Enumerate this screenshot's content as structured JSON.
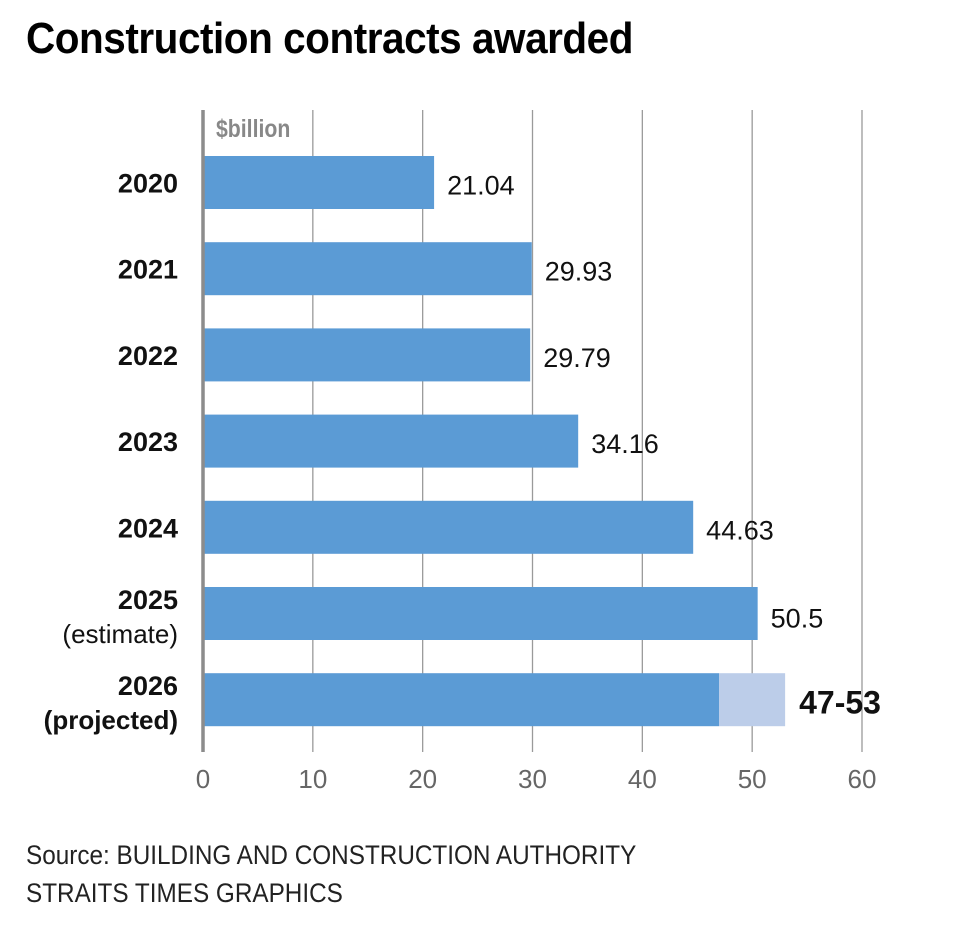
{
  "chart_data": {
    "type": "bar",
    "orientation": "horizontal",
    "title": "Construction contracts awarded",
    "unit_label": "$billion",
    "xlabel": "",
    "ylabel": "",
    "xlim": [
      0,
      60
    ],
    "xticks": [
      0,
      10,
      20,
      30,
      40,
      50,
      60
    ],
    "grid": true,
    "categories": [
      {
        "label": "2020",
        "sublabel": ""
      },
      {
        "label": "2021",
        "sublabel": ""
      },
      {
        "label": "2022",
        "sublabel": ""
      },
      {
        "label": "2023",
        "sublabel": ""
      },
      {
        "label": "2024",
        "sublabel": ""
      },
      {
        "label": "2025",
        "sublabel": "(estimate)"
      },
      {
        "label": "2026",
        "sublabel": "(projected)",
        "bold_sublabel": true
      }
    ],
    "values": [
      21.04,
      29.93,
      29.79,
      34.16,
      44.63,
      50.5,
      47
    ],
    "range_high": [
      null,
      null,
      null,
      null,
      null,
      null,
      53
    ],
    "data_labels": [
      "21.04",
      "29.93",
      "29.79",
      "34.16",
      "44.63",
      "50.5",
      "47-53"
    ],
    "colors": {
      "bar": "#5b9bd5",
      "range": "#bccde9",
      "grid": "#9a9a9a",
      "axis": "#8c8c8c",
      "tick_text": "#666666"
    }
  },
  "source": {
    "line1": "Source: BUILDING AND CONSTRUCTION AUTHORITY",
    "line2": "STRAITS TIMES GRAPHICS"
  }
}
